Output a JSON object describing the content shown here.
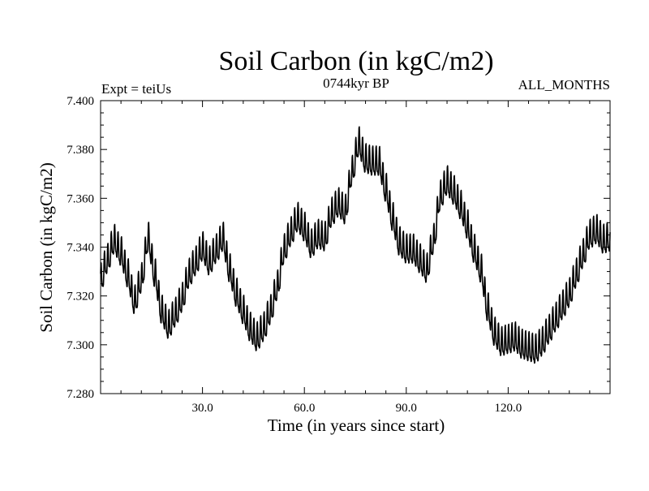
{
  "chart_data": {
    "type": "line",
    "title": "Soil Carbon (in kgC/m2)",
    "subtitle_left": "Expt = teiUs",
    "subtitle_center": "0744kyr BP",
    "subtitle_right": "ALL_MONTHS",
    "xlabel": "Time (in years since start)",
    "ylabel": "Soil Carbon (in kgC/m2)",
    "xlim": [
      0,
      150
    ],
    "ylim": [
      7.28,
      7.4
    ],
    "x_ticks": [
      {
        "value": 30,
        "label": "30.0"
      },
      {
        "value": 60,
        "label": "60.0"
      },
      {
        "value": 90,
        "label": "90.0"
      },
      {
        "value": 120,
        "label": "120.0"
      }
    ],
    "y_ticks": [
      {
        "value": 7.28,
        "label": "7.280"
      },
      {
        "value": 7.3,
        "label": "7.300"
      },
      {
        "value": 7.32,
        "label": "7.320"
      },
      {
        "value": 7.34,
        "label": "7.340"
      },
      {
        "value": 7.36,
        "label": "7.360"
      },
      {
        "value": 7.38,
        "label": "7.380"
      },
      {
        "value": 7.4,
        "label": "7.400"
      }
    ],
    "seasonal_amplitude": 0.0055,
    "samples_per_year": 12,
    "series": [
      {
        "name": "Soil Carbon",
        "color": "#000000",
        "x": [
          0,
          2,
          4,
          6,
          8,
          10,
          12,
          14,
          16,
          18,
          20,
          22,
          24,
          26,
          28,
          30,
          32,
          34,
          36,
          38,
          40,
          42,
          44,
          46,
          48,
          50,
          52,
          54,
          56,
          58,
          60,
          62,
          64,
          66,
          68,
          70,
          72,
          74,
          76,
          78,
          80,
          82,
          84,
          86,
          88,
          90,
          92,
          94,
          96,
          98,
          100,
          102,
          104,
          106,
          108,
          110,
          112,
          114,
          116,
          118,
          120,
          122,
          124,
          126,
          128,
          130,
          132,
          134,
          136,
          138,
          140,
          142,
          144,
          146,
          148,
          150
        ],
        "values": [
          7.326,
          7.334,
          7.342,
          7.337,
          7.328,
          7.317,
          7.326,
          7.343,
          7.328,
          7.313,
          7.307,
          7.312,
          7.318,
          7.328,
          7.333,
          7.339,
          7.333,
          7.338,
          7.343,
          7.33,
          7.32,
          7.313,
          7.306,
          7.302,
          7.306,
          7.313,
          7.323,
          7.338,
          7.345,
          7.351,
          7.347,
          7.34,
          7.344,
          7.343,
          7.353,
          7.357,
          7.354,
          7.37,
          7.382,
          7.375,
          7.374,
          7.374,
          7.363,
          7.351,
          7.341,
          7.338,
          7.338,
          7.334,
          7.33,
          7.342,
          7.36,
          7.366,
          7.362,
          7.356,
          7.348,
          7.338,
          7.33,
          7.314,
          7.304,
          7.3,
          7.301,
          7.302,
          7.299,
          7.298,
          7.297,
          7.3,
          7.305,
          7.31,
          7.315,
          7.32,
          7.328,
          7.336,
          7.344,
          7.346,
          7.342,
          7.343
        ]
      }
    ],
    "grid": false,
    "legend": "none"
  }
}
